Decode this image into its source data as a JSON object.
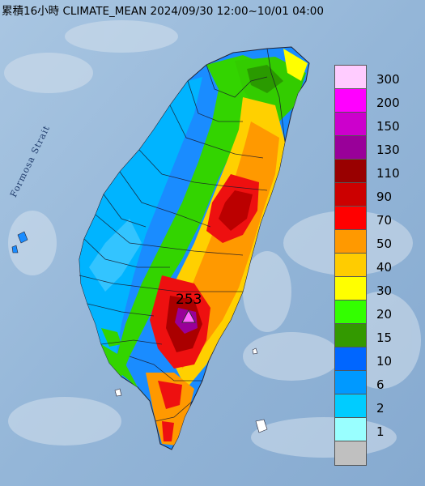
{
  "title": "累積16小時 CLIMATE_MEAN 2024/09/30 12:00~10/01 04:00",
  "strait_label": "Formosa Strait",
  "max_value": "253",
  "legend": [
    {
      "label": "300",
      "color": "#ffccff"
    },
    {
      "label": "200",
      "color": "#ff00ff"
    },
    {
      "label": "150",
      "color": "#cc00cc"
    },
    {
      "label": "130",
      "color": "#990099"
    },
    {
      "label": "110",
      "color": "#990000"
    },
    {
      "label": "90",
      "color": "#cc0000"
    },
    {
      "label": "70",
      "color": "#ff0000"
    },
    {
      "label": "50",
      "color": "#ff9900"
    },
    {
      "label": "40",
      "color": "#ffcc00"
    },
    {
      "label": "30",
      "color": "#ffff00"
    },
    {
      "label": "20",
      "color": "#33ff00"
    },
    {
      "label": "15",
      "color": "#339900"
    },
    {
      "label": "10",
      "color": "#0066ff"
    },
    {
      "label": "6",
      "color": "#0099ff"
    },
    {
      "label": "2",
      "color": "#00ccff"
    },
    {
      "label": "1",
      "color": "#99ffff"
    },
    {
      "label": "",
      "color": "#c0c0c0"
    }
  ],
  "map_colors": {
    "sea": "#8fb4d6",
    "cloud": "#c8d6e6"
  }
}
